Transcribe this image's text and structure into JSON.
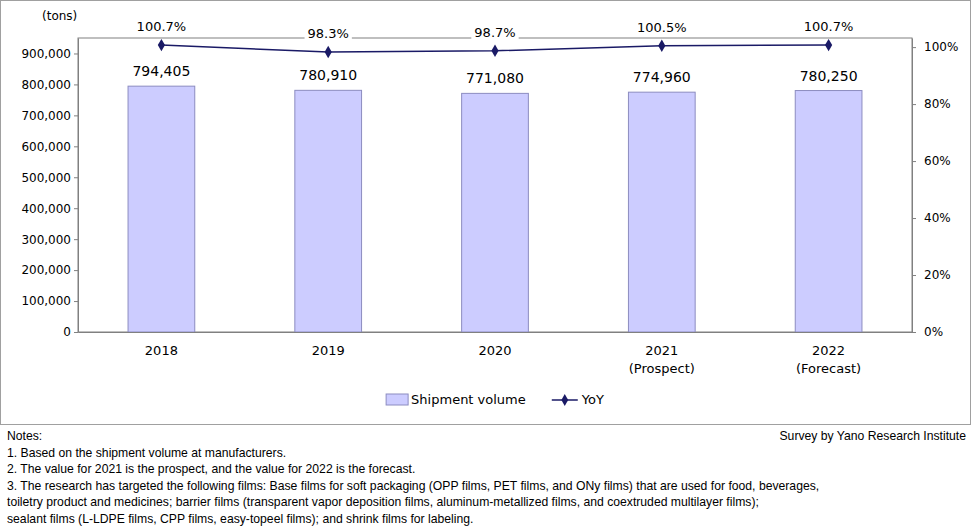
{
  "chart_data": {
    "type": "bar",
    "ylabel": "(tons)",
    "categories": [
      "2018",
      "2019",
      "2020",
      "2021\n(Prospect)",
      "2022\n(Forecast)"
    ],
    "series": [
      {
        "name": "Shipment volume",
        "type": "bar",
        "color": "#ccccff",
        "values": [
          794405,
          780910,
          771080,
          774960,
          780250
        ],
        "value_labels": [
          "794,405",
          "780,910",
          "771,080",
          "774,960",
          "780,250"
        ]
      },
      {
        "name": "YoY",
        "type": "line",
        "axis": "y2",
        "color": "#1a1a66",
        "marker": "diamond",
        "line_style": "solid",
        "values": [
          100.7,
          98.3,
          98.7,
          100.5,
          100.7
        ],
        "value_labels": [
          "100.7%",
          "98.3%",
          "98.7%",
          "100.5%",
          "100.7%"
        ]
      }
    ],
    "ylim": [
      0,
      950000
    ],
    "yticks": [
      0,
      {
        "value": 100000,
        "label": "100,000"
      },
      {
        "value": 200000,
        "label": "200,000"
      },
      {
        "value": 300000,
        "label": "300,000"
      },
      {
        "value": 400000,
        "label": "400,000"
      },
      {
        "value": 500000,
        "label": "500,000"
      },
      {
        "value": 600000,
        "label": "600,000"
      },
      {
        "value": 700000,
        "label": "700,000"
      },
      {
        "value": 800000,
        "label": "800,000"
      },
      {
        "value": 900000,
        "label": "900,000"
      }
    ],
    "y2lim": [
      0,
      103.2
    ],
    "y2ticks": [
      {
        "value": 0,
        "label": "0%"
      },
      {
        "value": 20,
        "label": "20%"
      },
      {
        "value": 40,
        "label": "40%"
      },
      {
        "value": 60,
        "label": "60%"
      },
      {
        "value": 80,
        "label": "80%"
      },
      {
        "value": 100,
        "label": "100%"
      }
    ],
    "grid": false,
    "legend": "bottom",
    "data_labels": true,
    "notes": [
      "Notes:",
      "1. Based on the shipment volume at manufacturers.",
      "2. The value for 2021 is the prospect, and the value for 2022 is the forecast.",
      "3. The research has targeted the following films: Base films for soft packaging (OPP films, PET films, and ONy films) that are used for food, beverages,",
      "toiletry product and medicines; barrier films (transparent vapor deposition films, aluminum-metallized films, and coextruded multilayer films);",
      "sealant films (L-LDPE films, CPP films, easy-topeel films); and shrink films for labeling."
    ],
    "source": "Survey by Yano Research Institute"
  }
}
